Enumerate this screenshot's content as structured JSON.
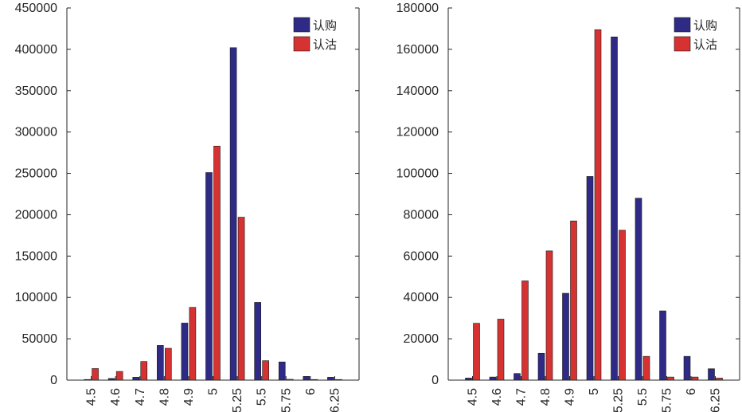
{
  "chart_data": [
    {
      "type": "bar",
      "title": "",
      "xlabel": "",
      "ylabel": "",
      "categories": [
        "4.5",
        "4.6",
        "4.7",
        "4.8",
        "4.9",
        "5",
        "5.25",
        "5.5",
        "5.75",
        "6",
        "6.25"
      ],
      "ylim": [
        0,
        450000
      ],
      "yticks": [
        0,
        50000,
        100000,
        150000,
        200000,
        250000,
        300000,
        350000,
        400000,
        450000
      ],
      "legend_position": "top-right",
      "grid": false,
      "series": [
        {
          "name": "认购",
          "color": "#2e2a85",
          "values": [
            500,
            2000,
            3500,
            42000,
            69000,
            251000,
            402000,
            94000,
            22000,
            4500,
            3500
          ]
        },
        {
          "name": "认沽",
          "color": "#d63232",
          "values": [
            14000,
            10500,
            22500,
            38500,
            88000,
            283000,
            197000,
            23500,
            1000,
            500,
            500
          ]
        }
      ]
    },
    {
      "type": "bar",
      "title": "",
      "xlabel": "",
      "ylabel": "",
      "categories": [
        "4.5",
        "4.6",
        "4.7",
        "4.8",
        "4.9",
        "5",
        "5.25",
        "5.5",
        "5.75",
        "6",
        "6.25"
      ],
      "ylim": [
        0,
        180000
      ],
      "yticks": [
        0,
        20000,
        40000,
        60000,
        80000,
        100000,
        120000,
        140000,
        160000,
        180000
      ],
      "legend_position": "top-right",
      "grid": false,
      "series": [
        {
          "name": "认购",
          "color": "#2e2a85",
          "values": [
            1000,
            1500,
            3200,
            13000,
            42000,
            98500,
            166000,
            88000,
            33500,
            11500,
            5500
          ]
        },
        {
          "name": "认沽",
          "color": "#d63232",
          "values": [
            27500,
            29500,
            48000,
            62500,
            77000,
            169500,
            72500,
            11500,
            1500,
            1500,
            1000
          ]
        }
      ]
    }
  ]
}
